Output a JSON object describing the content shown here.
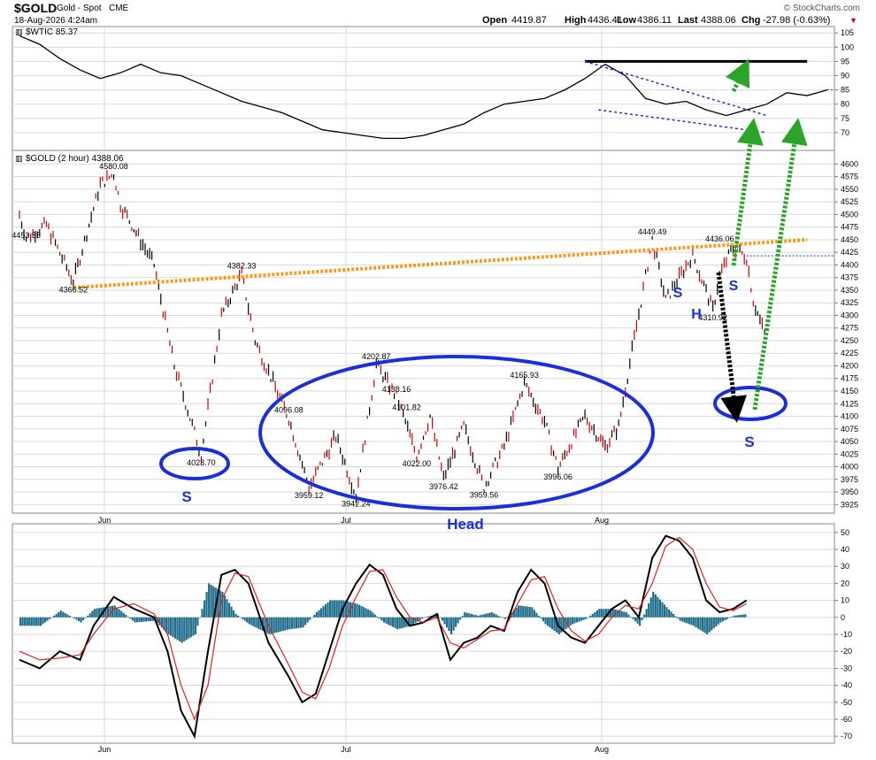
{
  "header": {
    "symbol": "$GOLD",
    "name": "Gold - Spot",
    "exchange": "CME",
    "date": "18-Aug-2026 4:24am",
    "watermark": "© StockCharts.com",
    "open_label": "Open",
    "open": "4419.87",
    "high_label": "High",
    "high": "4436.41",
    "low_label": "Low",
    "low": "4386.11",
    "last_label": "Last",
    "last": "4388.06",
    "chg_label": "Chg",
    "chg": "-27.98 (-0.63%)",
    "chg_arrow": "▼"
  },
  "colors": {
    "price_up": "#000000",
    "price_down": "#cc0000",
    "neckline": "#f59a1b",
    "annotation_blue": "#1a2fdc",
    "arrow_green": "#2aa52a",
    "arrow_black": "#000000",
    "histogram": "#1f6e8c",
    "macd_line": "#000000",
    "signal_line": "#e02020",
    "grid": "#d9d9d9",
    "wti_dotted": "#1a2fdc"
  },
  "chart_data": [
    {
      "type": "line",
      "panel": "wti",
      "title": "$WTIC 85.37",
      "ylim": [
        65,
        106
      ],
      "y_ticks": [
        70,
        75,
        80,
        85,
        90,
        95,
        100,
        105
      ],
      "x_labels": [
        "Jun",
        "Jul",
        "Aug"
      ],
      "series": [
        {
          "name": "$WTIC",
          "x": [
            0,
            3,
            6,
            9,
            12,
            15,
            18,
            21,
            24,
            27,
            30,
            33,
            36,
            39,
            42,
            45,
            48,
            51,
            54,
            57,
            60,
            63,
            66,
            69,
            72,
            75,
            78,
            81,
            84,
            87,
            90,
            93,
            96,
            99,
            102,
            105,
            108,
            111,
            114,
            117,
            120
          ],
          "y": [
            104,
            101,
            96,
            92,
            89,
            91,
            94,
            91,
            90,
            87,
            84,
            81,
            79,
            77,
            74,
            71,
            70,
            69,
            68,
            68,
            69,
            71,
            73,
            77,
            80,
            81,
            82,
            85,
            89,
            94,
            90,
            82,
            80,
            81,
            78,
            76,
            78,
            80,
            84,
            83,
            85
          ]
        }
      ],
      "annotations": {
        "resistance_level": 95,
        "last_level": 85,
        "wedge_upper": [
          [
            84,
            95
          ],
          [
            111,
            76
          ]
        ],
        "wedge_lower": [
          [
            86,
            78
          ],
          [
            111,
            70
          ]
        ]
      }
    },
    {
      "type": "line",
      "panel": "gold",
      "title": "$GOLD (2 hour) 4388.06",
      "ylim": [
        3915,
        4620
      ],
      "y_ticks": [
        3925,
        3950,
        3975,
        4000,
        4025,
        4050,
        4075,
        4100,
        4125,
        4150,
        4175,
        4200,
        4225,
        4250,
        4275,
        4300,
        4325,
        4350,
        4375,
        4400,
        4425,
        4450,
        4475,
        4500,
        4525,
        4550,
        4575,
        4600
      ],
      "x_labels": [
        "Jun",
        "Jul",
        "Aug"
      ],
      "series": [
        {
          "name": "$GOLD",
          "x": [
            0,
            1,
            4,
            8,
            12,
            14,
            15,
            20,
            23,
            27,
            30,
            33,
            35,
            40,
            43,
            47,
            50,
            53,
            56,
            57,
            59,
            61,
            63,
            66,
            69,
            72,
            75,
            78,
            80,
            82,
            84,
            87,
            89,
            91,
            94,
            96,
            100,
            103,
            104,
            106,
            108,
            109,
            111,
            113,
            114,
            116
          ],
          "y": [
            4500,
            4453.55,
            4480,
            4366.52,
            4560,
            4580.08,
            4520,
            4400,
            4200,
            4023.7,
            4300,
            4382.33,
            4250,
            4096.08,
            3959.12,
            4060,
            3942.24,
            4202.87,
            4138.16,
            4101.82,
            4022,
            4100,
            3976.42,
            4080,
            3959.56,
            4040,
            4165.93,
            4090,
            3996.06,
            4050,
            4100,
            4040,
            4080,
            4230,
            4449.49,
            4330,
            4420,
            4310.92,
            4380,
            4436.06,
            4415,
            4330,
            4250,
            4150,
            4125,
            4125
          ]
        }
      ],
      "price_labels": [
        "4580.08",
        "4453.55",
        "4366.52",
        "4382.33",
        "4023.70",
        "4096.08",
        "4202.87",
        "4138.16",
        "4101.82",
        "4022.00",
        "4165.93",
        "3959.12",
        "3942.24",
        "3976.42",
        "3959.56",
        "3996.06",
        "4449.49",
        "4436.06",
        "4310.92"
      ],
      "pattern_labels": {
        "left_shoulder": "S",
        "head": "Head",
        "right_s1": "S",
        "right_h": "H",
        "right_s2": "S",
        "projected_s": "S"
      },
      "neckline": [
        [
          8,
          4355
        ],
        [
          117,
          4450
        ]
      ],
      "last_level": 4418
    },
    {
      "type": "line",
      "panel": "macd",
      "ylim": [
        -72,
        53
      ],
      "y_ticks": [
        -70,
        -60,
        -50,
        -40,
        -30,
        -20,
        -10,
        0,
        10,
        20,
        30,
        40,
        50
      ],
      "x_labels": [
        "Jun",
        "Jul",
        "Aug"
      ],
      "series": [
        {
          "name": "MACD",
          "x": [
            0,
            3,
            6,
            9,
            11,
            14,
            17,
            20,
            22,
            24,
            26,
            28,
            30,
            32,
            34,
            37,
            40,
            42,
            44,
            46,
            48,
            50,
            52,
            54,
            56,
            58,
            60,
            62,
            64,
            66,
            68,
            70,
            72,
            74,
            76,
            78,
            80,
            82,
            84,
            86,
            88,
            90,
            92,
            94,
            96,
            98,
            100,
            102,
            104,
            106,
            108
          ],
          "y": [
            -25,
            -30,
            -20,
            -25,
            -5,
            12,
            5,
            0,
            -20,
            -55,
            -70,
            -20,
            25,
            28,
            20,
            -15,
            -35,
            -50,
            -45,
            -20,
            5,
            20,
            31,
            25,
            5,
            -5,
            -3,
            2,
            -25,
            -15,
            -12,
            -5,
            -8,
            15,
            28,
            20,
            -5,
            -12,
            -15,
            -5,
            5,
            10,
            0,
            35,
            48,
            45,
            35,
            10,
            3,
            5,
            10
          ]
        },
        {
          "name": "Signal",
          "x": [
            0,
            3,
            6,
            9,
            11,
            14,
            17,
            20,
            22,
            24,
            26,
            28,
            30,
            32,
            34,
            37,
            40,
            42,
            44,
            46,
            48,
            50,
            52,
            54,
            56,
            58,
            60,
            62,
            64,
            66,
            68,
            70,
            72,
            74,
            76,
            78,
            80,
            82,
            84,
            86,
            88,
            90,
            92,
            94,
            96,
            98,
            100,
            102,
            104,
            106,
            108
          ],
          "y": [
            -20,
            -25,
            -24,
            -22,
            -10,
            5,
            8,
            2,
            -10,
            -40,
            -60,
            -40,
            10,
            26,
            24,
            -5,
            -28,
            -44,
            -48,
            -30,
            -5,
            12,
            27,
            28,
            12,
            0,
            -3,
            0,
            -15,
            -18,
            -13,
            -8,
            -7,
            8,
            22,
            24,
            5,
            -8,
            -14,
            -10,
            0,
            7,
            5,
            20,
            42,
            47,
            40,
            20,
            6,
            4,
            8
          ]
        }
      ]
    }
  ]
}
